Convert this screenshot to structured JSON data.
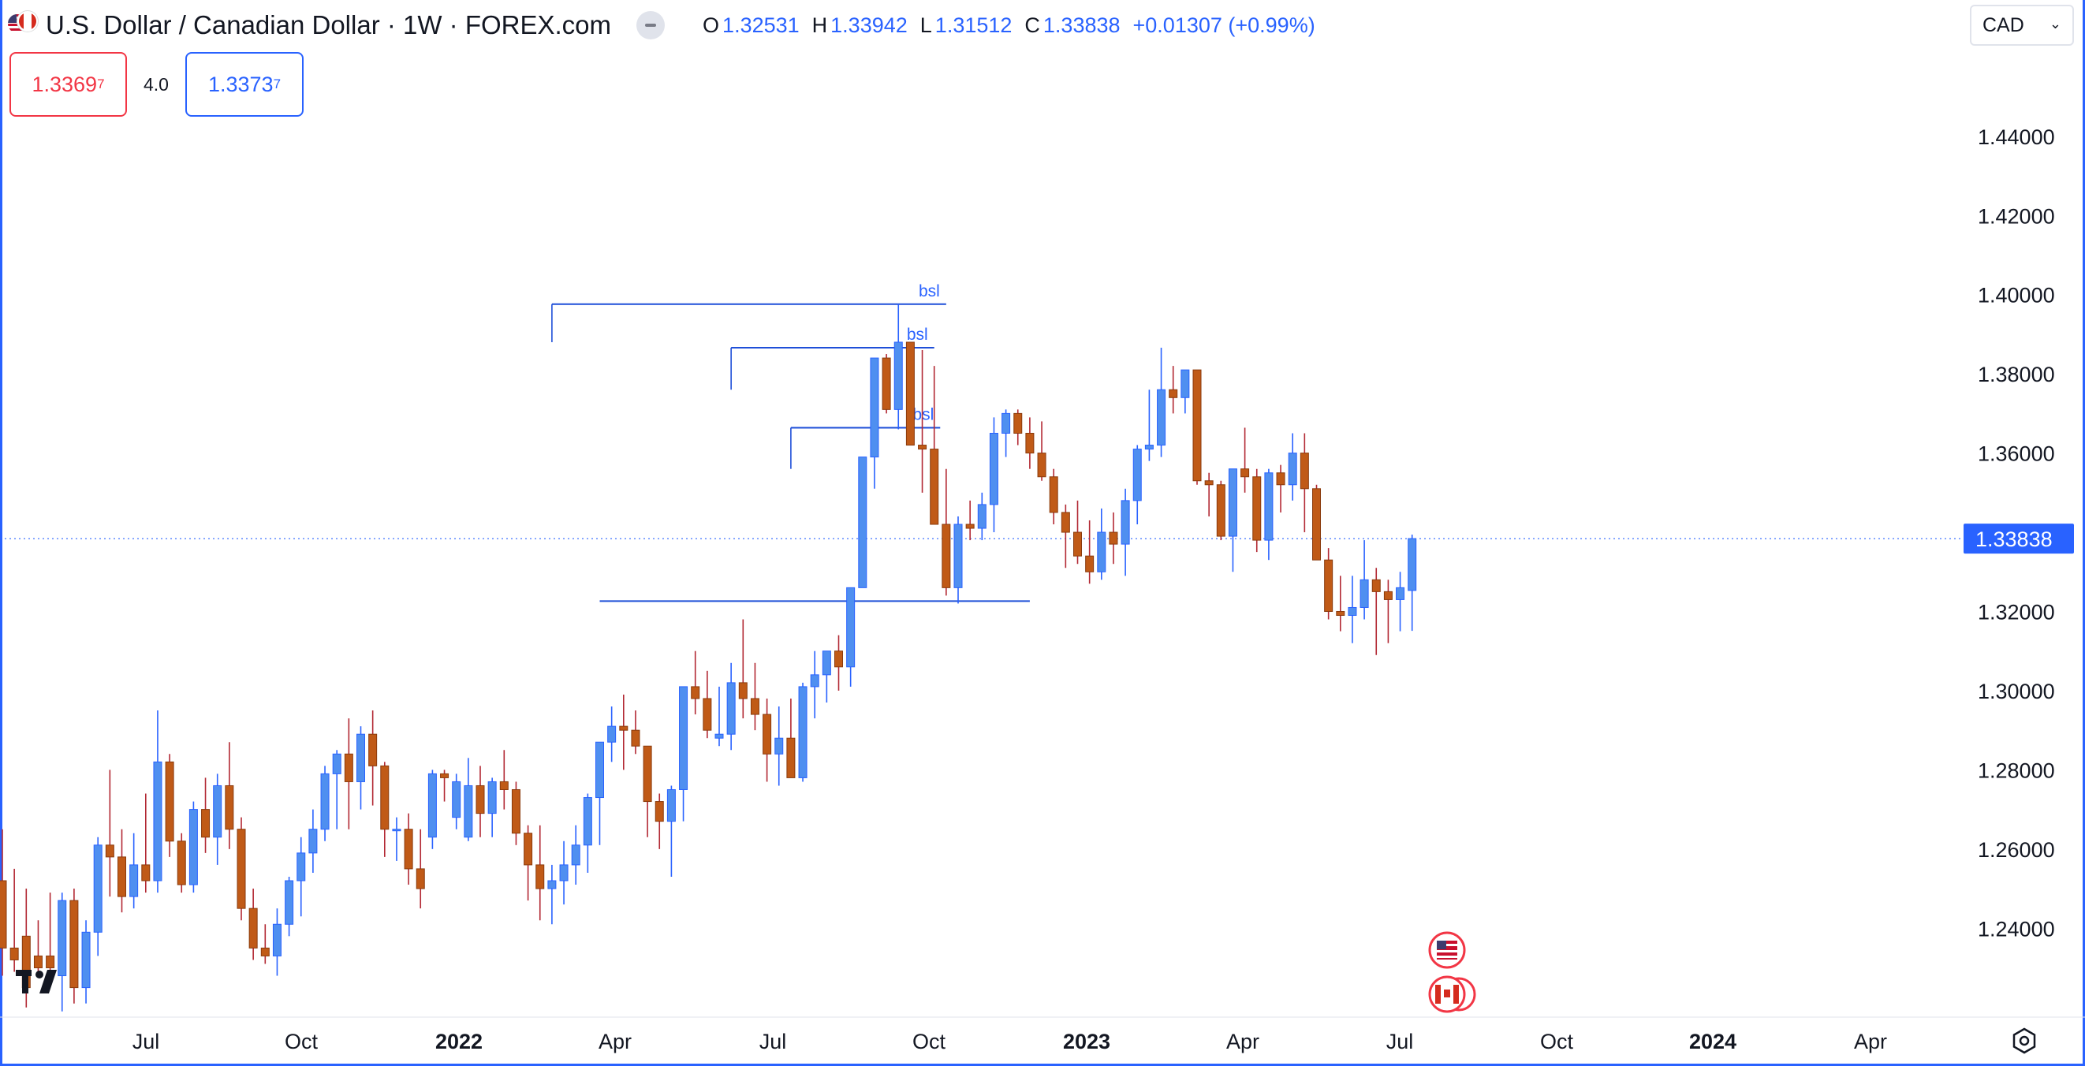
{
  "header": {
    "title": "U.S. Dollar / Canadian Dollar · 1W · FOREX.com",
    "ohlc": [
      {
        "k": "O",
        "v": "1.32531"
      },
      {
        "k": "H",
        "v": "1.33942"
      },
      {
        "k": "L",
        "v": "1.31512"
      },
      {
        "k": "C",
        "v": "1.33838"
      }
    ],
    "change": "+0.01307 (+0.99%)"
  },
  "trade": {
    "sell_main": "1.3369",
    "sell_sup": "7",
    "spread": "4.0",
    "buy_main": "1.3373",
    "buy_sup": "7"
  },
  "currency": {
    "selected": "CAD"
  },
  "colors": {
    "up": "#4f8ff0",
    "down": "#c05a17",
    "accent": "#2962ff",
    "sell": "#f23645"
  },
  "icons": {
    "flag": "usd-cad-flag-icon",
    "logo": "tradingview-logo-icon",
    "settings": "settings-icon",
    "events": [
      "us-flag-event-icon",
      "ca-flag-event-icon"
    ]
  },
  "chart_data": {
    "type": "candlestick",
    "timeframe": "1W",
    "y_ticks": [
      1.24,
      1.26,
      1.28,
      1.3,
      1.32,
      1.34,
      1.36,
      1.38,
      1.4,
      1.42,
      1.44
    ],
    "y_tick_labels": [
      "1.24000",
      "1.26000",
      "1.28000",
      "1.30000",
      "1.32000",
      "1.34000",
      "1.36000",
      "1.38000",
      "1.40000",
      "1.42000",
      "1.44000"
    ],
    "ylim": [
      1.2295,
      1.4545
    ],
    "x_labels": [
      {
        "text": "Jul",
        "bold": false
      },
      {
        "text": "Oct",
        "bold": false
      },
      {
        "text": "2022",
        "bold": true
      },
      {
        "text": "Apr",
        "bold": false
      },
      {
        "text": "Jul",
        "bold": false
      },
      {
        "text": "Oct",
        "bold": false
      },
      {
        "text": "2023",
        "bold": true
      },
      {
        "text": "Apr",
        "bold": false
      },
      {
        "text": "Jul",
        "bold": false
      },
      {
        "text": "Oct",
        "bold": false
      },
      {
        "text": "2024",
        "bold": true
      },
      {
        "text": "Apr",
        "bold": false
      }
    ],
    "last_price": 1.33838,
    "last_price_label": "1.33838",
    "levels": [
      {
        "label": "bsl",
        "price": 1.3976,
        "from_bar": 46,
        "to_bar": 79
      },
      {
        "label": "bsl",
        "price": 1.3866,
        "from_bar": 61,
        "to_bar": 78
      },
      {
        "label": "bsl",
        "price": 1.3664,
        "from_bar": 66,
        "to_bar": 78.5
      },
      {
        "label": "",
        "price": 1.3226,
        "from_bar": 50,
        "to_bar": 86
      }
    ],
    "candles": [
      [
        1.252,
        1.265,
        1.228,
        1.235
      ],
      [
        1.235,
        1.255,
        1.229,
        1.232
      ],
      [
        1.238,
        1.25,
        1.22,
        1.225
      ],
      [
        1.233,
        1.242,
        1.228,
        1.23
      ],
      [
        1.233,
        1.249,
        1.226,
        1.23
      ],
      [
        1.228,
        1.249,
        1.219,
        1.247
      ],
      [
        1.247,
        1.25,
        1.221,
        1.225
      ],
      [
        1.225,
        1.242,
        1.221,
        1.239
      ],
      [
        1.239,
        1.263,
        1.233,
        1.261
      ],
      [
        1.261,
        1.28,
        1.248,
        1.258
      ],
      [
        1.258,
        1.265,
        1.244,
        1.248
      ],
      [
        1.248,
        1.264,
        1.245,
        1.256
      ],
      [
        1.256,
        1.274,
        1.249,
        1.252
      ],
      [
        1.252,
        1.295,
        1.249,
        1.282
      ],
      [
        1.282,
        1.284,
        1.258,
        1.262
      ],
      [
        1.262,
        1.264,
        1.249,
        1.251
      ],
      [
        1.251,
        1.272,
        1.249,
        1.27
      ],
      [
        1.27,
        1.278,
        1.259,
        1.263
      ],
      [
        1.263,
        1.279,
        1.256,
        1.276
      ],
      [
        1.276,
        1.287,
        1.26,
        1.265
      ],
      [
        1.265,
        1.268,
        1.242,
        1.245
      ],
      [
        1.245,
        1.25,
        1.232,
        1.235
      ],
      [
        1.235,
        1.241,
        1.231,
        1.233
      ],
      [
        1.233,
        1.245,
        1.228,
        1.241
      ],
      [
        1.241,
        1.253,
        1.238,
        1.252
      ],
      [
        1.252,
        1.263,
        1.243,
        1.259
      ],
      [
        1.259,
        1.27,
        1.254,
        1.265
      ],
      [
        1.265,
        1.281,
        1.262,
        1.279
      ],
      [
        1.279,
        1.285,
        1.265,
        1.284
      ],
      [
        1.284,
        1.293,
        1.265,
        1.277
      ],
      [
        1.277,
        1.291,
        1.27,
        1.289
      ],
      [
        1.289,
        1.295,
        1.271,
        1.281
      ],
      [
        1.281,
        1.282,
        1.258,
        1.265
      ],
      [
        1.265,
        1.268,
        1.257,
        1.265
      ],
      [
        1.265,
        1.269,
        1.251,
        1.255
      ],
      [
        1.255,
        1.265,
        1.245,
        1.25
      ],
      [
        1.263,
        1.28,
        1.26,
        1.279
      ],
      [
        1.279,
        1.28,
        1.272,
        1.278
      ],
      [
        1.268,
        1.279,
        1.265,
        1.277
      ]
    ],
    "candles_tail": [
      [
        1.263,
        1.283,
        1.262,
        1.276
      ],
      [
        1.276,
        1.281,
        1.263,
        1.269
      ],
      [
        1.269,
        1.278,
        1.263,
        1.277
      ],
      [
        1.277,
        1.285,
        1.27,
        1.275
      ],
      [
        1.275,
        1.277,
        1.261,
        1.264
      ],
      [
        1.264,
        1.266,
        1.247,
        1.256
      ],
      [
        1.256,
        1.266,
        1.242,
        1.25
      ],
      [
        1.25,
        1.256,
        1.241,
        1.252
      ],
      [
        1.252,
        1.262,
        1.246,
        1.256
      ],
      [
        1.256,
        1.266,
        1.251,
        1.261
      ],
      [
        1.261,
        1.274,
        1.254,
        1.273
      ],
      [
        1.273,
        1.281,
        1.261,
        1.287
      ],
      [
        1.287,
        1.296,
        1.282,
        1.291
      ],
      [
        1.291,
        1.299,
        1.28,
        1.29
      ],
      [
        1.29,
        1.295,
        1.284,
        1.286
      ],
      [
        1.286,
        1.286,
        1.263,
        1.272
      ],
      [
        1.272,
        1.274,
        1.26,
        1.267
      ],
      [
        1.267,
        1.276,
        1.253,
        1.275
      ],
      [
        1.275,
        1.298,
        1.267,
        1.301
      ],
      [
        1.301,
        1.31,
        1.294,
        1.298
      ],
      [
        1.298,
        1.305,
        1.288,
        1.29
      ],
      [
        1.288,
        1.301,
        1.286,
        1.289
      ],
      [
        1.289,
        1.307,
        1.285,
        1.302
      ],
      [
        1.302,
        1.318,
        1.293,
        1.298
      ],
      [
        1.298,
        1.307,
        1.29,
        1.294
      ],
      [
        1.294,
        1.298,
        1.277,
        1.284
      ],
      [
        1.284,
        1.296,
        1.276,
        1.288
      ],
      [
        1.288,
        1.298,
        1.279,
        1.278
      ]
    ],
    "candles_tail2": [
      [
        1.278,
        1.302,
        1.277,
        1.301
      ],
      [
        1.301,
        1.31,
        1.293,
        1.304
      ],
      [
        1.304,
        1.307,
        1.297,
        1.31
      ],
      [
        1.31,
        1.314,
        1.3,
        1.306
      ],
      [
        1.306,
        1.318,
        1.301,
        1.326
      ],
      [
        1.326,
        1.349,
        1.326,
        1.359
      ],
      [
        1.359,
        1.382,
        1.351,
        1.384
      ],
      [
        1.384,
        1.385,
        1.37,
        1.371
      ],
      [
        1.371,
        1.3976,
        1.366,
        1.388
      ],
      [
        1.388,
        1.388,
        1.362,
        1.362
      ],
      [
        1.362,
        1.386,
        1.35,
        1.361
      ],
      [
        1.361,
        1.382,
        1.348,
        1.342
      ],
      [
        1.342,
        1.356,
        1.324,
        1.326
      ],
      [
        1.326,
        1.344,
        1.322,
        1.342
      ],
      [
        1.342,
        1.348,
        1.338,
        1.341
      ],
      [
        1.341,
        1.35,
        1.338,
        1.347
      ],
      [
        1.347,
        1.369,
        1.34,
        1.365
      ],
      [
        1.365,
        1.371,
        1.359,
        1.37
      ],
      [
        1.37,
        1.371,
        1.362,
        1.365
      ],
      [
        1.365,
        1.369,
        1.356,
        1.36
      ],
      [
        1.36,
        1.368,
        1.353,
        1.354
      ],
      [
        1.354,
        1.356,
        1.342,
        1.345
      ],
      [
        1.345,
        1.347,
        1.331,
        1.34
      ],
      [
        1.34,
        1.348,
        1.332,
        1.334
      ],
      [
        1.334,
        1.343,
        1.327,
        1.33
      ],
      [
        1.33,
        1.346,
        1.328,
        1.34
      ],
      [
        1.34,
        1.345,
        1.332,
        1.337
      ],
      [
        1.337,
        1.351,
        1.329,
        1.348
      ],
      [
        1.348,
        1.362,
        1.342,
        1.361
      ],
      [
        1.361,
        1.376,
        1.358,
        1.362
      ],
      [
        1.362,
        1.3866,
        1.359,
        1.376
      ],
      [
        1.376,
        1.382,
        1.37,
        1.374
      ]
    ],
    "candles_tail3": [
      [
        1.374,
        1.381,
        1.37,
        1.381
      ],
      [
        1.381,
        1.381,
        1.352,
        1.353
      ],
      [
        1.353,
        1.355,
        1.344,
        1.352
      ],
      [
        1.352,
        1.353,
        1.338,
        1.339
      ],
      [
        1.339,
        1.356,
        1.33,
        1.356
      ],
      [
        1.356,
        1.3664,
        1.35,
        1.354
      ],
      [
        1.354,
        1.356,
        1.335,
        1.338
      ],
      [
        1.338,
        1.356,
        1.333,
        1.355
      ],
      [
        1.355,
        1.357,
        1.345,
        1.352
      ],
      [
        1.352,
        1.365,
        1.348,
        1.36
      ],
      [
        1.36,
        1.365,
        1.34,
        1.351
      ],
      [
        1.351,
        1.352,
        1.337,
        1.333
      ],
      [
        1.333,
        1.336,
        1.318,
        1.32
      ],
      [
        1.32,
        1.329,
        1.315,
        1.319
      ],
      [
        1.319,
        1.329,
        1.312,
        1.321
      ],
      [
        1.321,
        1.338,
        1.318,
        1.328
      ],
      [
        1.328,
        1.331,
        1.309,
        1.325
      ],
      [
        1.325,
        1.328,
        1.312,
        1.323
      ],
      [
        1.323,
        1.33,
        1.315,
        1.326
      ],
      [
        1.3253,
        1.3394,
        1.3151,
        1.3384
      ]
    ]
  }
}
